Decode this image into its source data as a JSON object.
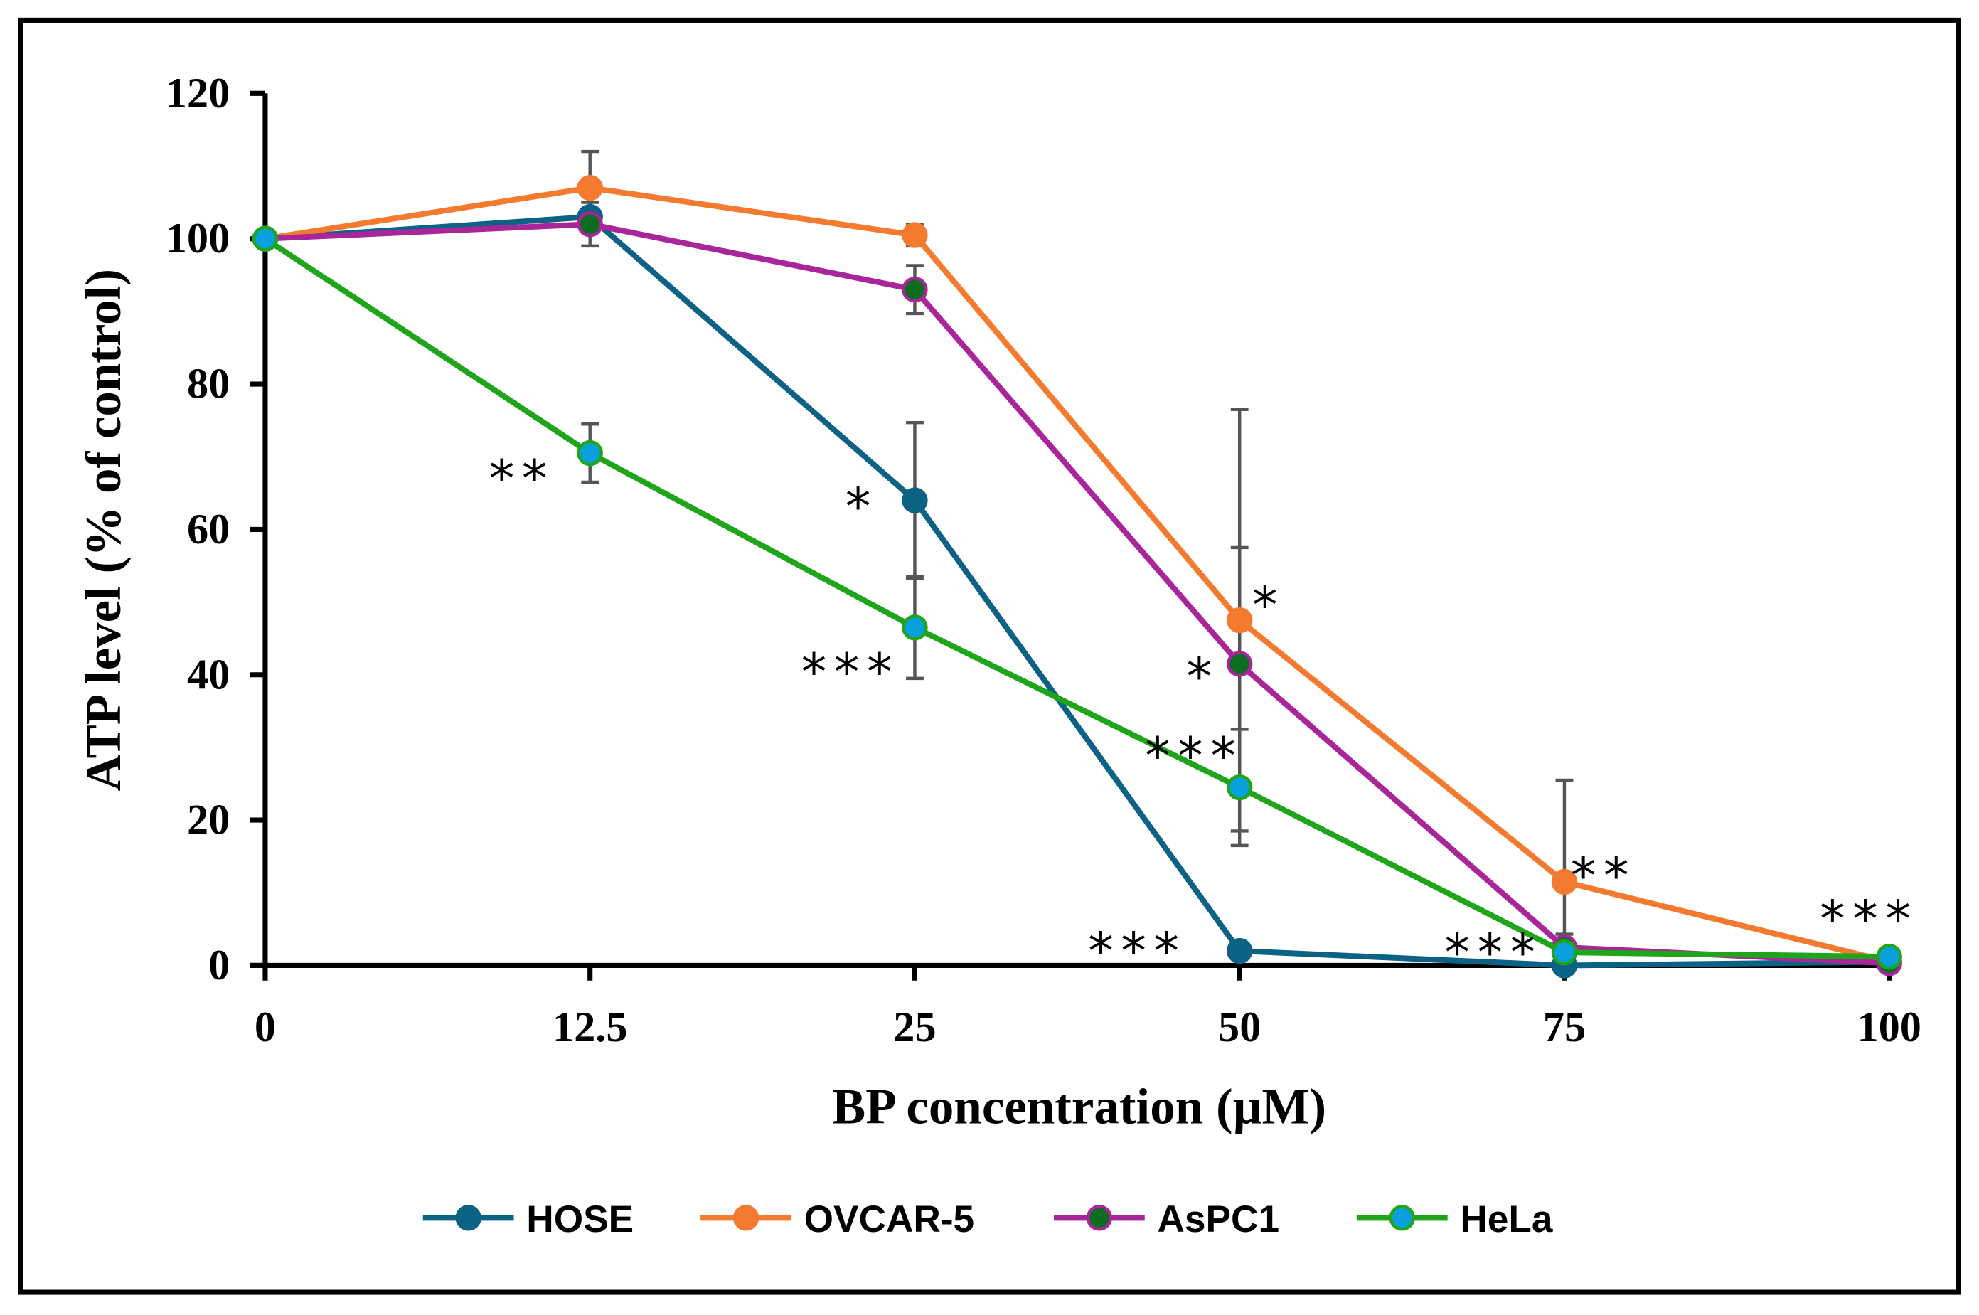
{
  "chart_data": {
    "type": "line",
    "title": "",
    "xlabel": "BP concentration (µM)",
    "ylabel": "ATP level (% of control)",
    "categories": [
      "0",
      "12.5",
      "25",
      "50",
      "75",
      "100"
    ],
    "ylim": [
      0,
      120
    ],
    "yticks": [
      "0",
      "20",
      "40",
      "60",
      "80",
      "100",
      "120"
    ],
    "grid": false,
    "legend_position": "bottom",
    "series": [
      {
        "name": "HOSE",
        "color": "#0B6285",
        "marker_fill": "#0B6285",
        "values": [
          100,
          103,
          64,
          2,
          0,
          0.5
        ],
        "errors": [
          0,
          0,
          10.7,
          0,
          0,
          0
        ]
      },
      {
        "name": "OVCAR-5",
        "color": "#F47A2F",
        "marker_fill": "#F47A2F",
        "values": [
          100,
          107,
          100.5,
          47.5,
          11.5,
          0.5
        ],
        "errors": [
          0,
          5,
          1.5,
          29,
          14,
          0
        ]
      },
      {
        "name": "AsPC1",
        "color": "#A8259A",
        "marker_fill": "#0D6B22",
        "values": [
          100,
          102,
          93,
          41.5,
          2.5,
          0.3
        ],
        "errors": [
          0,
          3,
          3.3,
          16,
          0,
          0
        ]
      },
      {
        "name": "HeLa",
        "color": "#1FA51A",
        "marker_fill": "#0AA0DC",
        "values": [
          100,
          70.5,
          46.5,
          24.5,
          1.8,
          1.2
        ],
        "errors": [
          0,
          4,
          7,
          8,
          2.5,
          0
        ]
      }
    ],
    "annotations": [
      {
        "text": "**",
        "category": "12.5",
        "series": "HeLa"
      },
      {
        "text": "*",
        "category": "25",
        "series": "HOSE"
      },
      {
        "text": "***",
        "category": "25",
        "series": "HeLa"
      },
      {
        "text": "*",
        "category": "50",
        "series": "OVCAR-5"
      },
      {
        "text": "*",
        "category": "50",
        "series": "AsPC1"
      },
      {
        "text": "***",
        "category": "50",
        "series": "HeLa"
      },
      {
        "text": "***",
        "category": "50",
        "series": "HOSE"
      },
      {
        "text": "**",
        "category": "75",
        "series": "OVCAR-5"
      },
      {
        "text": "***",
        "category": "75",
        "series": "HeLa"
      },
      {
        "text": "***",
        "category": "100",
        "series": "all"
      }
    ]
  }
}
